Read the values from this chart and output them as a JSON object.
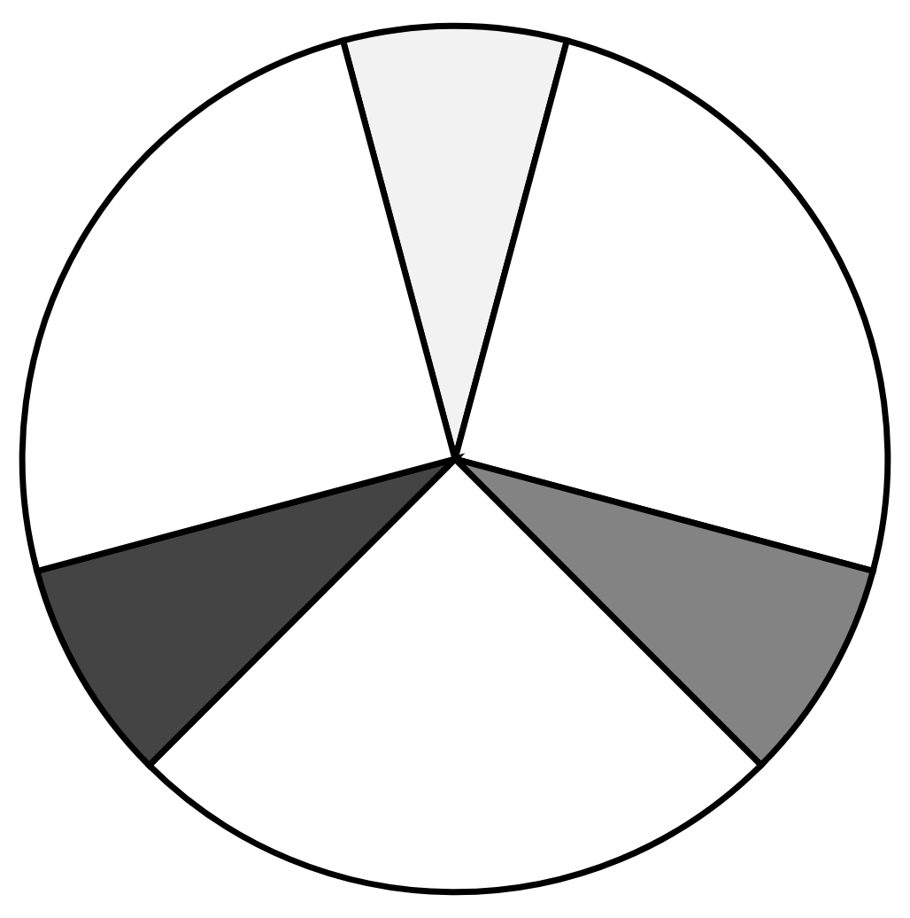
{
  "chart_data": {
    "type": "pie",
    "categories": [
      null,
      null,
      null,
      null,
      null,
      null
    ],
    "values": [
      8.33,
      25,
      8.33,
      25,
      8.34,
      25
    ],
    "colors": [
      "#f2f2f2",
      "#ffffff",
      "#838383",
      "#ffffff",
      "#444444",
      "#ffffff"
    ]
  }
}
